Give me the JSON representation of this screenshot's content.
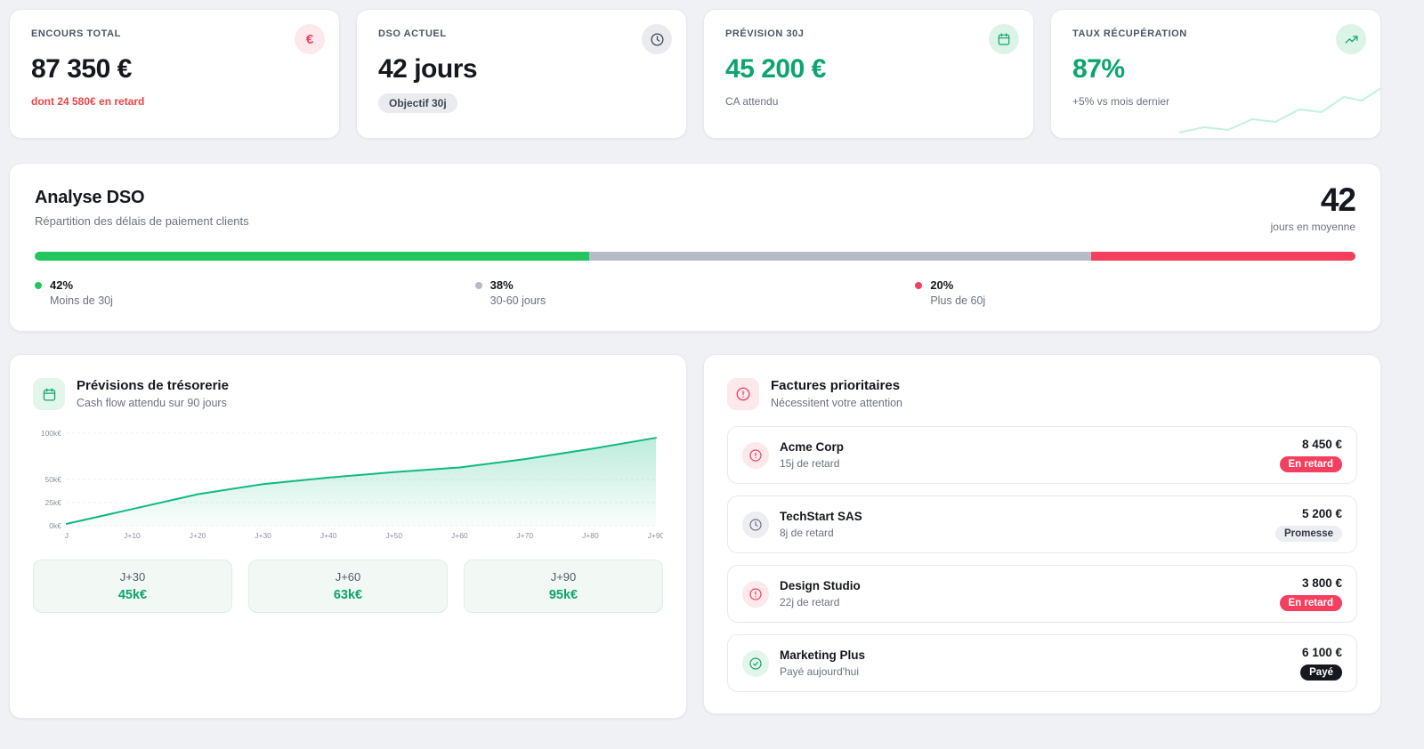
{
  "theme": {
    "background": "#eff1f4",
    "card_background": "#ffffff",
    "accent_green": "#10b981",
    "accent_green_text": "#0ca56d",
    "accent_red": "#ef4444",
    "accent_rose": "#f43f5e",
    "neutral_gray": "#b6bcc6"
  },
  "kpis": [
    {
      "label": "ENCOURS TOTAL",
      "value": "87 350 €",
      "sub": "dont 24 580€ en retard",
      "icon": "euro-icon",
      "icon_glyph": "€"
    },
    {
      "label": "DSO ACTUEL",
      "value": "42 jours",
      "badge": "Objectif 30j",
      "icon": "clock-icon"
    },
    {
      "label": "PRÉVISION 30J",
      "value": "45 200 €",
      "sub": "CA attendu",
      "icon": "calendar-icon"
    },
    {
      "label": "TAUX RÉCUPÉRATION",
      "value": "87%",
      "sub": "+5% vs mois dernier",
      "icon": "trending-up-icon"
    }
  ],
  "dso": {
    "title": "Analyse DSO",
    "subtitle": "Répartition des délais de paiement clients",
    "average_value": "42",
    "average_label": "jours en moyenne",
    "segments": [
      {
        "pct": 42,
        "pct_label": "42%",
        "label": "Moins de 30j",
        "color": "#22c55e"
      },
      {
        "pct": 38,
        "pct_label": "38%",
        "label": "30-60 jours",
        "color": "#b6bcc6"
      },
      {
        "pct": 20,
        "pct_label": "20%",
        "label": "Plus de 60j",
        "color": "#f43f5e"
      }
    ]
  },
  "forecast": {
    "title": "Prévisions de trésorerie",
    "subtitle": "Cash flow attendu sur 90 jours",
    "icon": "calendar-icon",
    "chart_data": {
      "type": "area",
      "x": [
        "J",
        "J+10",
        "J+20",
        "J+30",
        "J+40",
        "J+50",
        "J+60",
        "J+70",
        "J+80",
        "J+90"
      ],
      "values": [
        2,
        18,
        34,
        45,
        52,
        58,
        63,
        72,
        83,
        95
      ],
      "unit": "k€",
      "ylim": [
        0,
        100
      ],
      "yticks": [
        {
          "value": 0,
          "label": "0k€"
        },
        {
          "value": 25,
          "label": "25k€"
        },
        {
          "value": 50,
          "label": "50k€"
        },
        {
          "value": 100,
          "label": "100k€"
        }
      ],
      "line_color": "#10b981",
      "grid": true,
      "legend": "none",
      "title": "Prévisions de trésorerie",
      "xlabel": "",
      "ylabel": ""
    },
    "milestones": [
      {
        "label": "J+30",
        "value": "45k€"
      },
      {
        "label": "J+60",
        "value": "63k€"
      },
      {
        "label": "J+90",
        "value": "95k€"
      }
    ]
  },
  "invoices": {
    "title": "Factures prioritaires",
    "subtitle": "Nécessitent votre attention",
    "icon": "alert-circle-icon",
    "items": [
      {
        "name": "Acme Corp",
        "detail": "15j de retard",
        "amount": "8 450 €",
        "status": "En retard",
        "status_type": "late",
        "icon": "alert-circle-icon"
      },
      {
        "name": "TechStart SAS",
        "detail": "8j de retard",
        "amount": "5 200 €",
        "status": "Promesse",
        "status_type": "promise",
        "icon": "clock-icon"
      },
      {
        "name": "Design Studio",
        "detail": "22j de retard",
        "amount": "3 800 €",
        "status": "En retard",
        "status_type": "late",
        "icon": "alert-circle-icon"
      },
      {
        "name": "Marketing Plus",
        "detail": "Payé aujourd'hui",
        "amount": "6 100 €",
        "status": "Payé",
        "status_type": "paid",
        "icon": "check-circle-icon"
      }
    ]
  }
}
